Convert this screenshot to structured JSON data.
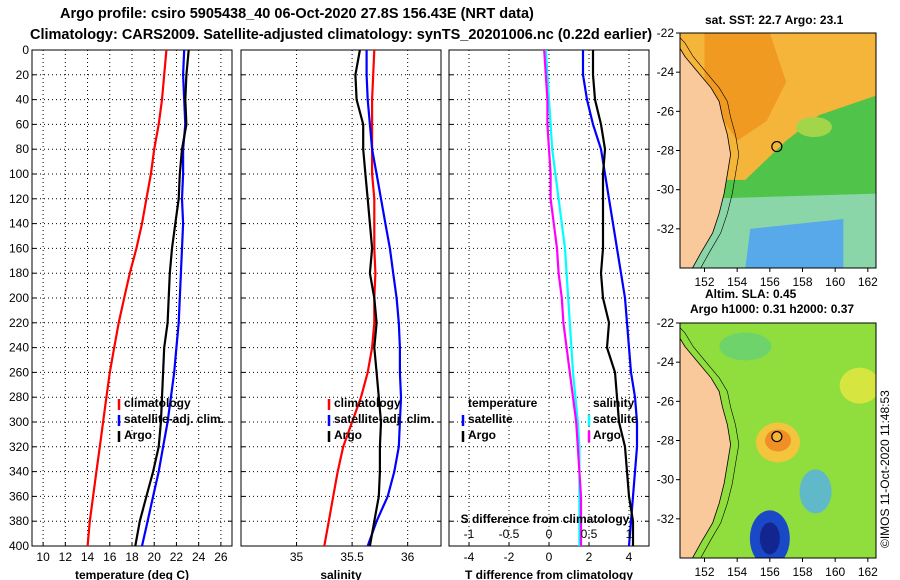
{
  "header": {
    "line1": "Argo profile: csiro 5905438_40 06-Oct-2020 27.8S 156.43E (NRT data)",
    "line2": "Climatology: CARS2009. Satellite-adjusted climatology: synTS_20201006.nc (0.22d earlier)"
  },
  "colors": {
    "climatology": "#ff0000",
    "satellite": "#0000ff",
    "argo": "#000000",
    "s_diff": "#ff00ff",
    "t_diff_sat": "#00ffff",
    "land": "#f9c89b"
  },
  "depth_axis": {
    "ticks": [
      0,
      20,
      40,
      60,
      80,
      100,
      120,
      140,
      160,
      180,
      200,
      220,
      240,
      260,
      280,
      300,
      320,
      340,
      360,
      380,
      400
    ],
    "range": [
      0,
      400
    ]
  },
  "chart_data": [
    {
      "type": "line",
      "panel": "temperature",
      "xlabel": "temperature (deg C)",
      "xlim": [
        9,
        27
      ],
      "xticks": [
        10,
        12,
        14,
        16,
        18,
        20,
        22,
        24,
        26
      ],
      "ylim": [
        400,
        0
      ],
      "legend": [
        "climatology",
        "satellite-adj. clim.",
        "Argo"
      ],
      "series": [
        {
          "name": "climatology",
          "x": [
            21.1,
            20.9,
            20.7,
            20.4,
            20.0,
            19.7,
            19.3,
            18.9,
            18.4,
            17.8,
            17.3,
            16.8,
            16.4,
            16.0,
            15.7,
            15.4,
            15.1,
            14.8,
            14.5,
            14.2,
            14.0
          ],
          "depth": [
            0,
            20,
            40,
            60,
            80,
            100,
            120,
            140,
            160,
            180,
            200,
            220,
            240,
            260,
            280,
            300,
            320,
            340,
            360,
            380,
            400
          ]
        },
        {
          "name": "satellite-adj. clim.",
          "x": [
            22.7,
            22.6,
            22.7,
            22.8,
            22.6,
            22.6,
            22.5,
            22.6,
            22.5,
            22.4,
            22.3,
            22.2,
            22.0,
            21.8,
            21.5,
            21.2,
            20.8,
            20.4,
            19.9,
            19.4,
            18.9
          ],
          "depth": [
            0,
            20,
            40,
            60,
            80,
            100,
            120,
            140,
            160,
            180,
            200,
            220,
            240,
            260,
            280,
            300,
            320,
            340,
            360,
            380,
            400
          ]
        },
        {
          "name": "Argo",
          "x": [
            23.1,
            22.9,
            22.8,
            22.9,
            22.5,
            22.3,
            22.2,
            21.9,
            21.6,
            21.4,
            21.3,
            21.2,
            20.9,
            20.8,
            20.7,
            20.6,
            20.4,
            19.9,
            19.3,
            18.7,
            18.3
          ],
          "depth": [
            0,
            20,
            40,
            60,
            80,
            100,
            120,
            140,
            160,
            180,
            200,
            220,
            240,
            260,
            280,
            300,
            320,
            340,
            360,
            380,
            400
          ]
        }
      ]
    },
    {
      "type": "line",
      "panel": "salinity",
      "xlabel": "salinity",
      "xlim": [
        34.5,
        36.3
      ],
      "xticks": [
        35,
        35.5,
        36
      ],
      "xticklabels": [
        "35",
        "35.5",
        "36"
      ],
      "ylim": [
        400,
        0
      ],
      "legend": [
        "climatology",
        "satellite-adj. clim.",
        "Argo"
      ],
      "series": [
        {
          "name": "climatology",
          "x": [
            35.7,
            35.69,
            35.68,
            35.68,
            35.68,
            35.68,
            35.7,
            35.7,
            35.7,
            35.71,
            35.7,
            35.7,
            35.68,
            35.64,
            35.58,
            35.5,
            35.42,
            35.37,
            35.33,
            35.29,
            35.25
          ],
          "depth": [
            0,
            20,
            40,
            60,
            80,
            100,
            120,
            140,
            160,
            180,
            200,
            220,
            240,
            260,
            280,
            300,
            320,
            340,
            360,
            380,
            400
          ]
        },
        {
          "name": "satellite-adj. clim.",
          "x": [
            35.63,
            35.63,
            35.64,
            35.66,
            35.68,
            35.72,
            35.76,
            35.8,
            35.84,
            35.87,
            35.9,
            35.92,
            35.93,
            35.93,
            35.94,
            35.93,
            35.92,
            35.88,
            35.82,
            35.72,
            35.64
          ],
          "depth": [
            0,
            20,
            40,
            60,
            80,
            100,
            120,
            140,
            160,
            180,
            200,
            220,
            240,
            260,
            280,
            300,
            320,
            340,
            360,
            380,
            400
          ]
        },
        {
          "name": "Argo",
          "x": [
            35.57,
            35.53,
            35.54,
            35.6,
            35.6,
            35.62,
            35.64,
            35.66,
            35.68,
            35.66,
            35.7,
            35.72,
            35.7,
            35.72,
            35.74,
            35.76,
            35.75,
            35.75,
            35.74,
            35.7,
            35.66
          ],
          "depth": [
            0,
            20,
            40,
            60,
            80,
            100,
            120,
            140,
            160,
            180,
            200,
            220,
            240,
            260,
            280,
            300,
            320,
            340,
            360,
            380,
            400
          ]
        }
      ]
    },
    {
      "type": "line",
      "panel": "differences",
      "xlabel": "T difference from climatology",
      "xlim": [
        -5,
        5
      ],
      "xticks": [
        -4,
        -2,
        0,
        2,
        4
      ],
      "top_label": "S difference from climatology",
      "top_ticks": [
        -1,
        -0.5,
        0,
        0.5,
        1
      ],
      "top_ticklabels": [
        "-1",
        "-0.5",
        "0",
        "0.5",
        "1"
      ],
      "ylim": [
        400,
        0
      ],
      "legend_left": [
        "temperature",
        "satellite",
        "Argo"
      ],
      "legend_right": [
        "salinity",
        "satellite",
        "Argo"
      ],
      "series": [
        {
          "name": "temperature satellite",
          "x": [
            1.7,
            1.7,
            1.9,
            2.2,
            2.6,
            2.8,
            3.0,
            3.2,
            3.4,
            3.6,
            3.8,
            3.9,
            4.0,
            4.1,
            4.3,
            4.4,
            4.4,
            4.3,
            4.2,
            4.1,
            4.0
          ],
          "depth": [
            0,
            20,
            40,
            60,
            80,
            100,
            120,
            140,
            160,
            180,
            200,
            220,
            240,
            260,
            280,
            300,
            320,
            340,
            360,
            380,
            400
          ]
        },
        {
          "name": "temperature Argo",
          "x": [
            2.2,
            2.2,
            2.3,
            2.6,
            2.8,
            2.7,
            2.7,
            2.7,
            2.7,
            2.6,
            2.7,
            3.0,
            2.9,
            3.3,
            3.4,
            3.5,
            3.8,
            3.9,
            4.0,
            4.2,
            4.2
          ],
          "depth": [
            0,
            20,
            40,
            60,
            80,
            100,
            120,
            140,
            160,
            180,
            200,
            220,
            240,
            260,
            280,
            300,
            320,
            340,
            360,
            380,
            400
          ]
        },
        {
          "name": "salinity satellite",
          "x": [
            -0.04,
            -0.02,
            0.0,
            0.02,
            0.04,
            0.08,
            0.12,
            0.16,
            0.2,
            0.22,
            0.24,
            0.26,
            0.28,
            0.3,
            0.33,
            0.36,
            0.38,
            0.38,
            0.38,
            0.38,
            0.38
          ],
          "depth": [
            0,
            20,
            40,
            60,
            80,
            100,
            120,
            140,
            160,
            180,
            200,
            220,
            240,
            260,
            280,
            300,
            320,
            340,
            360,
            380,
            400
          ]
        },
        {
          "name": "salinity Argo",
          "x": [
            -0.06,
            -0.04,
            -0.02,
            -0.02,
            0.0,
            0.02,
            0.02,
            0.06,
            0.1,
            0.12,
            0.16,
            0.18,
            0.22,
            0.26,
            0.3,
            0.34,
            0.36,
            0.38,
            0.4,
            0.4,
            0.4
          ],
          "depth": [
            0,
            20,
            40,
            60,
            80,
            100,
            120,
            140,
            160,
            180,
            200,
            220,
            240,
            260,
            280,
            300,
            320,
            340,
            360,
            380,
            400
          ]
        }
      ]
    }
  ],
  "maps": {
    "sst": {
      "title": "sat. SST: 22.7  Argo: 23.1",
      "lat_ticks": [
        -22,
        -24,
        -26,
        -28,
        -30,
        -32
      ],
      "lon_ticks": [
        152,
        154,
        156,
        158,
        160,
        162
      ],
      "lon_range": [
        150.5,
        162.5
      ],
      "lat_range": [
        -34,
        -22
      ],
      "float_lon": 156.43,
      "float_lat": -27.8
    },
    "sla": {
      "title1": "Altim. SLA: 0.45",
      "title2": "Argo h1000: 0.31 h2000: 0.37",
      "lat_ticks": [
        -22,
        -24,
        -26,
        -28,
        -30,
        -32
      ],
      "lon_ticks": [
        152,
        154,
        156,
        158,
        160,
        162
      ],
      "lon_range": [
        150.5,
        162.5
      ],
      "lat_range": [
        -34,
        -22
      ],
      "float_lon": 156.43,
      "float_lat": -27.8
    }
  },
  "credit": "©IMOS 11-Oct-2020 11:48:53"
}
